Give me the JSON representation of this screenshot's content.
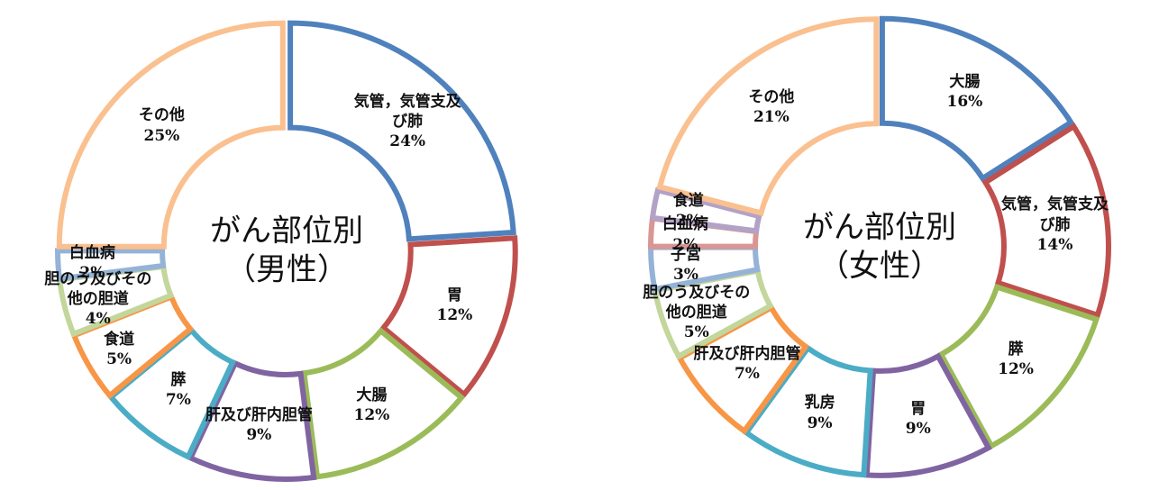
{
  "chart_data": [
    {
      "type": "pie",
      "donut": true,
      "title": "がん部位別",
      "subtitle": "（男性）",
      "categories": [
        "気管，気管支及び肺",
        "胃",
        "大腸",
        "肝及び肝内胆管",
        "膵",
        "食道",
        "胆のう及びその他の胆道",
        "白血病",
        "その他"
      ],
      "values": [
        24,
        12,
        12,
        9,
        7,
        5,
        4,
        2,
        25
      ],
      "value_labels": [
        "24%",
        "12%",
        "12%",
        "9%",
        "7%",
        "5%",
        "4%",
        "2%",
        "25%"
      ],
      "colors": [
        "#4f81bd",
        "#c0504d",
        "#9bbb59",
        "#8064a2",
        "#4bacc6",
        "#f79646",
        "#c3d69b",
        "#95b3d7",
        "#fac08f"
      ]
    },
    {
      "type": "pie",
      "donut": true,
      "title": "がん部位別",
      "subtitle": "（女性）",
      "categories": [
        "大腸",
        "気管，気管支及び肺",
        "膵",
        "胃",
        "乳房",
        "肝及び肝内胆管",
        "胆のう及びその他の胆道",
        "子宮",
        "白血病",
        "食道",
        "その他"
      ],
      "values": [
        16,
        14,
        12,
        9,
        9,
        7,
        5,
        3,
        2,
        2,
        21
      ],
      "value_labels": [
        "16%",
        "14%",
        "12%",
        "9%",
        "9%",
        "7%",
        "5%",
        "3%",
        "2%",
        "2%",
        "21%"
      ],
      "colors": [
        "#4f81bd",
        "#c0504d",
        "#9bbb59",
        "#8064a2",
        "#4bacc6",
        "#f79646",
        "#c3d69b",
        "#95b3d7",
        "#d99694",
        "#b3a2c7",
        "#fac08f"
      ]
    }
  ]
}
